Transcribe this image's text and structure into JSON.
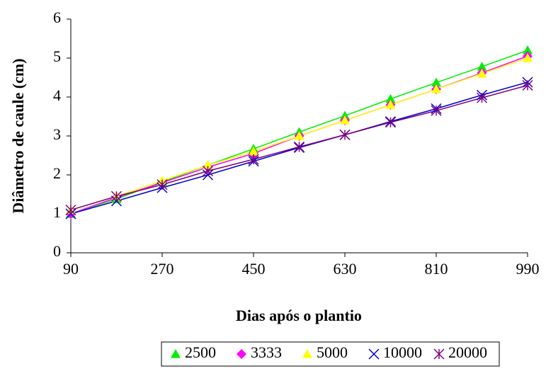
{
  "chart_data": {
    "type": "line",
    "xlabel": "Dias após o plantio",
    "ylabel": "Diâmetro de caule (cm)",
    "x": [
      90,
      180,
      270,
      360,
      450,
      540,
      630,
      720,
      810,
      900,
      990
    ],
    "xlim": [
      90,
      990
    ],
    "xticks": [
      90,
      270,
      450,
      630,
      810,
      990
    ],
    "ylim": [
      0,
      6
    ],
    "yticks": [
      0,
      1,
      2,
      3,
      4,
      5,
      6
    ],
    "grid": false,
    "legend": "bottom",
    "series": [
      {
        "name": "2500",
        "color": "#00ee00",
        "marker": "triangle",
        "values": [
          1.0,
          1.38,
          1.82,
          2.25,
          2.67,
          3.1,
          3.52,
          3.95,
          4.37,
          4.78,
          5.2
        ]
      },
      {
        "name": "3333",
        "color": "#ff00ff",
        "marker": "diamond",
        "values": [
          1.0,
          1.42,
          1.8,
          2.2,
          2.55,
          3.0,
          3.4,
          3.8,
          4.2,
          4.62,
          5.05
        ]
      },
      {
        "name": "5000",
        "color": "#ffff00",
        "marker": "triangle",
        "values": [
          1.1,
          1.45,
          1.85,
          2.25,
          2.6,
          3.0,
          3.4,
          3.8,
          4.2,
          4.6,
          5.0
        ]
      },
      {
        "name": "10000",
        "color": "#0000cc",
        "marker": "x",
        "values": [
          1.0,
          1.33,
          1.67,
          2.0,
          2.35,
          2.7,
          3.03,
          3.37,
          3.7,
          4.05,
          4.38
        ]
      },
      {
        "name": "20000",
        "color": "#800080",
        "marker": "asterisk",
        "values": [
          1.1,
          1.45,
          1.75,
          2.1,
          2.4,
          2.72,
          3.03,
          3.35,
          3.65,
          3.98,
          4.3
        ]
      }
    ]
  }
}
